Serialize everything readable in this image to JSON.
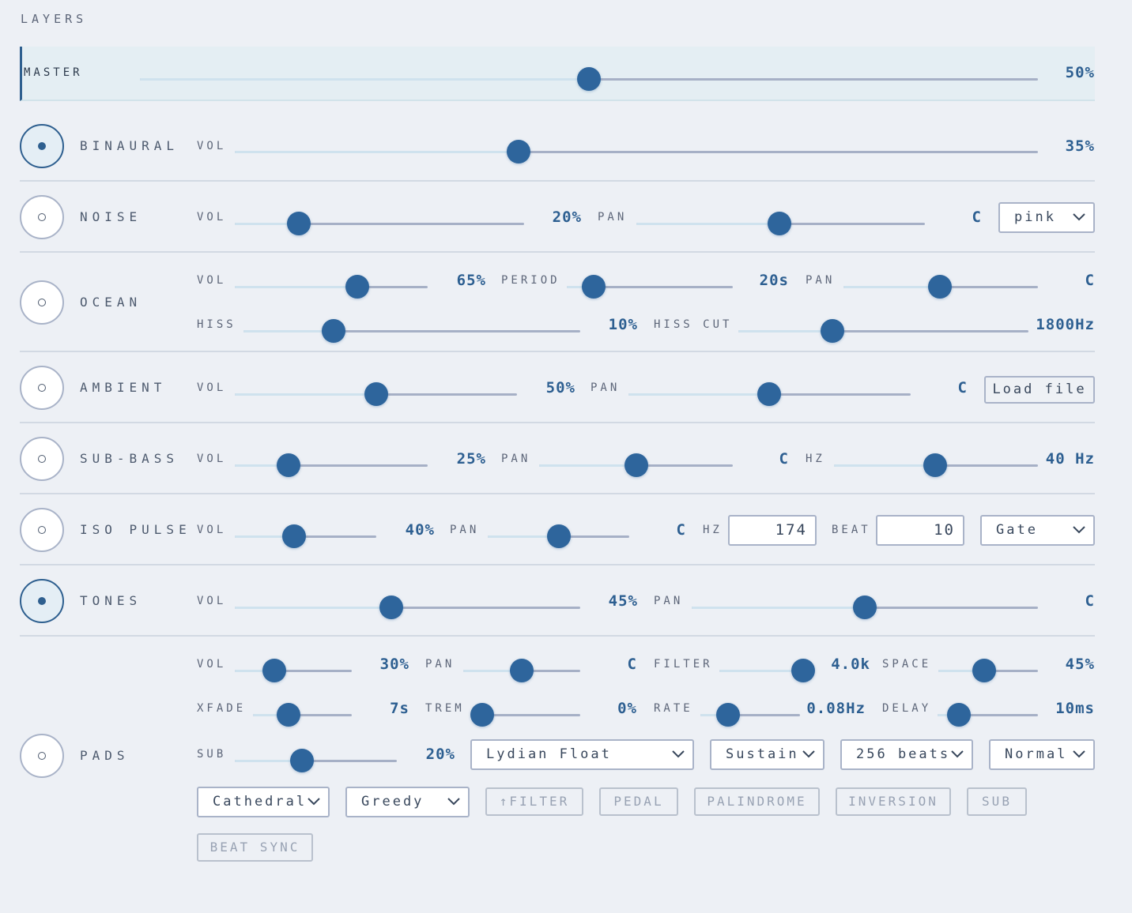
{
  "header": {
    "title": "LAYERS"
  },
  "master": {
    "label": "MASTER",
    "value": "50%"
  },
  "layers": [
    {
      "name": "BINAURAL",
      "controls": [
        {
          "label": "VOL",
          "value": "35%"
        }
      ]
    },
    {
      "name": "NOISE",
      "controls": [
        {
          "label": "VOL",
          "value": "20%"
        },
        {
          "label": "PAN",
          "value": "C"
        }
      ],
      "selects": [
        "pink"
      ]
    },
    {
      "name": "OCEAN",
      "controls": [
        {
          "label": "VOL",
          "value": "65%"
        },
        {
          "label": "PERIOD",
          "value": "20s"
        },
        {
          "label": "PAN",
          "value": "C"
        },
        {
          "label": "HISS",
          "value": "10%"
        },
        {
          "label": "HISS CUT",
          "value": "1800Hz"
        }
      ]
    },
    {
      "name": "AMBIENT",
      "controls": [
        {
          "label": "VOL",
          "value": "50%"
        },
        {
          "label": "PAN",
          "value": "C"
        }
      ],
      "buttons": [
        "Load file"
      ]
    },
    {
      "name": "SUB-BASS",
      "controls": [
        {
          "label": "VOL",
          "value": "25%"
        },
        {
          "label": "PAN",
          "value": "C"
        },
        {
          "label": "HZ",
          "value": "40 Hz"
        }
      ]
    },
    {
      "name": "ISO PULSE",
      "controls": [
        {
          "label": "VOL",
          "value": "40%"
        },
        {
          "label": "PAN",
          "value": "C"
        }
      ],
      "inputs": [
        {
          "label": "HZ",
          "value": 174
        },
        {
          "label": "BEAT",
          "value": 10
        }
      ],
      "selects": [
        "Gate"
      ]
    },
    {
      "name": "TONES",
      "controls": [
        {
          "label": "VOL",
          "value": "45%"
        },
        {
          "label": "PAN",
          "value": "C"
        }
      ]
    },
    {
      "name": "PADS",
      "controls": [
        {
          "label": "VOL",
          "value": "30%"
        },
        {
          "label": "PAN",
          "value": "C"
        },
        {
          "label": "FILTER",
          "value": "4.0k"
        },
        {
          "label": "SPACE",
          "value": "45%"
        },
        {
          "label": "XFADE",
          "value": "7s"
        },
        {
          "label": "TREM",
          "value": "0%"
        },
        {
          "label": "RATE",
          "value": "0.08Hz"
        },
        {
          "label": "DELAY",
          "value": "10ms"
        },
        {
          "label": "SUB",
          "value": "20%"
        }
      ],
      "selects": [
        "Lydian Float",
        "Sustain",
        "256 beats",
        "Normal",
        "Cathedral",
        "Greedy"
      ],
      "toggles": [
        "↑FILTER",
        "PEDAL",
        "PALINDROME",
        "INVERSION",
        "SUB",
        "BEAT SYNC"
      ]
    }
  ]
}
